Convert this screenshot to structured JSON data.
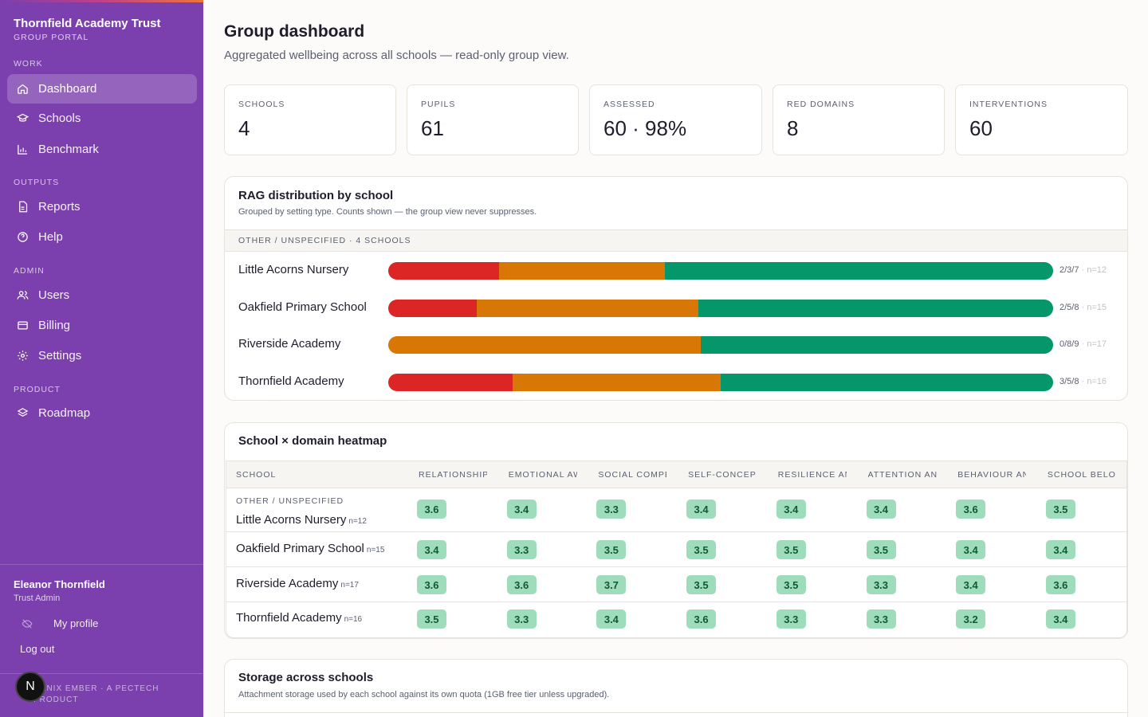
{
  "sidebar": {
    "brand_title": "Thornfield Academy Trust",
    "brand_sub": "GROUP PORTAL",
    "sections": {
      "work": "WORK",
      "outputs": "OUTPUTS",
      "admin": "ADMIN",
      "product": "PRODUCT"
    },
    "items": {
      "dashboard": "Dashboard",
      "schools": "Schools",
      "benchmark": "Benchmark",
      "reports": "Reports",
      "help": "Help",
      "users": "Users",
      "billing": "Billing",
      "settings": "Settings",
      "roadmap": "Roadmap"
    },
    "active": "dashboard",
    "user_name": "Eleanor Thornfield",
    "user_role": "Trust Admin",
    "profile_label": "My profile",
    "logout_label": "Log out",
    "footer": "OENIX EMBER · A PECTECH PRODUCT",
    "badge": "N"
  },
  "page": {
    "title": "Group dashboard",
    "subtitle": "Aggregated wellbeing across all schools — read-only group view."
  },
  "stats": [
    {
      "label": "SCHOOLS",
      "value": "4"
    },
    {
      "label": "PUPILS",
      "value": "61"
    },
    {
      "label": "ASSESSED",
      "value": "60 · 98%"
    },
    {
      "label": "RED DOMAINS",
      "value": "8"
    },
    {
      "label": "INTERVENTIONS",
      "value": "60"
    }
  ],
  "rag": {
    "title": "RAG distribution by school",
    "subtitle": "Grouped by setting type. Counts shown — the group view never suppresses.",
    "group_label": "OTHER / UNSPECIFIED · 4 SCHOOLS",
    "colors": {
      "red": "#dc2626",
      "amber": "#d97706",
      "green": "#059669"
    },
    "rows": [
      {
        "name": "Little Acorns Nursery",
        "red": 2,
        "amber": 3,
        "green": 7,
        "counts": "2/3/7",
        "n": "· n=12"
      },
      {
        "name": "Oakfield Primary School",
        "red": 2,
        "amber": 5,
        "green": 8,
        "counts": "2/5/8",
        "n": "· n=15"
      },
      {
        "name": "Riverside Academy",
        "red": 0,
        "amber": 8,
        "green": 9,
        "counts": "0/8/9",
        "n": "· n=17"
      },
      {
        "name": "Thornfield Academy",
        "red": 3,
        "amber": 5,
        "green": 8,
        "counts": "3/5/8",
        "n": "· n=16"
      }
    ]
  },
  "heatmap": {
    "title": "School × domain heatmap",
    "school_header": "SCHOOL",
    "columns": [
      "RELATIONSHIPS",
      "EMOTIONAL AW",
      "SOCIAL COMPE",
      "SELF-CONCEPT",
      "RESILIENCE AN",
      "ATTENTION AN",
      "BEHAVIOUR AN",
      "SCHOOL BELON"
    ],
    "group_label": "OTHER / UNSPECIFIED",
    "rows": [
      {
        "name": "Little Acorns Nursery",
        "n": "n=12",
        "values": [
          "3.6",
          "3.4",
          "3.3",
          "3.4",
          "3.4",
          "3.4",
          "3.6",
          "3.5"
        ]
      },
      {
        "name": "Oakfield Primary School",
        "n": "n=15",
        "values": [
          "3.4",
          "3.3",
          "3.5",
          "3.5",
          "3.5",
          "3.5",
          "3.4",
          "3.4"
        ]
      },
      {
        "name": "Riverside Academy",
        "n": "n=17",
        "values": [
          "3.6",
          "3.6",
          "3.7",
          "3.5",
          "3.5",
          "3.3",
          "3.4",
          "3.6"
        ]
      },
      {
        "name": "Thornfield Academy",
        "n": "n=16",
        "values": [
          "3.5",
          "3.3",
          "3.4",
          "3.6",
          "3.3",
          "3.3",
          "3.2",
          "3.4"
        ]
      }
    ]
  },
  "storage": {
    "title": "Storage across schools",
    "subtitle": "Attachment storage used by each school against its own quota (1GB free tier unless upgraded)."
  }
}
